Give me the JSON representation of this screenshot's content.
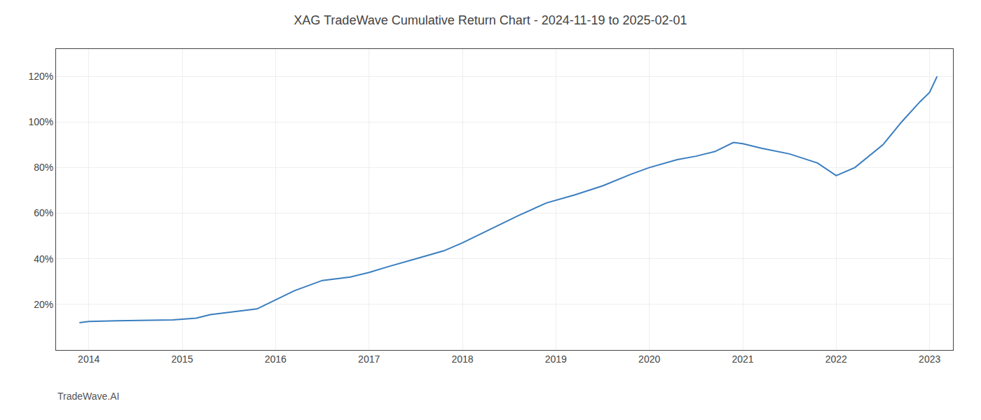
{
  "chart_data": {
    "type": "line",
    "title": "XAG TradeWave Cumulative Return Chart - 2024-11-19 to 2025-02-01",
    "annotations": [
      "TradeWave.AI"
    ],
    "x": [
      2013.9,
      2014.0,
      2014.3,
      2014.6,
      2014.9,
      2015.0,
      2015.15,
      2015.3,
      2015.5,
      2015.8,
      2016.0,
      2016.2,
      2016.5,
      2016.8,
      2017.0,
      2017.2,
      2017.5,
      2017.8,
      2018.0,
      2018.3,
      2018.6,
      2018.9,
      2019.2,
      2019.5,
      2019.8,
      2020.0,
      2020.3,
      2020.5,
      2020.7,
      2020.9,
      2021.0,
      2021.2,
      2021.5,
      2021.8,
      2022.0,
      2022.2,
      2022.5,
      2022.7,
      2022.9,
      2023.0,
      2023.08
    ],
    "values": [
      12,
      12.5,
      12.8,
      13.0,
      13.2,
      13.5,
      14.0,
      15.5,
      16.5,
      18.0,
      22.0,
      26.0,
      30.5,
      32.0,
      34.0,
      36.5,
      40.0,
      43.5,
      47.0,
      53.0,
      59.0,
      64.5,
      68.0,
      72.0,
      77.0,
      80.0,
      83.5,
      85.0,
      87.0,
      91.0,
      90.5,
      88.5,
      86.0,
      82.0,
      76.5,
      80.0,
      90.0,
      100.0,
      109.0,
      113.0,
      120.0
    ],
    "color": "#3a7ebf",
    "xlim": [
      2013.65,
      2023.25
    ],
    "xticks": [
      2014,
      2015,
      2016,
      2017,
      2018,
      2019,
      2020,
      2021,
      2022,
      2023
    ],
    "ylim": [
      0,
      132
    ],
    "yticks": [
      {
        "value": 20,
        "label": "20%"
      },
      {
        "value": 40,
        "label": "40%"
      },
      {
        "value": 60,
        "label": "60%"
      },
      {
        "value": 80,
        "label": "80%"
      },
      {
        "value": 100,
        "label": "100%"
      },
      {
        "value": 120,
        "label": "120%"
      }
    ],
    "grid": true
  }
}
